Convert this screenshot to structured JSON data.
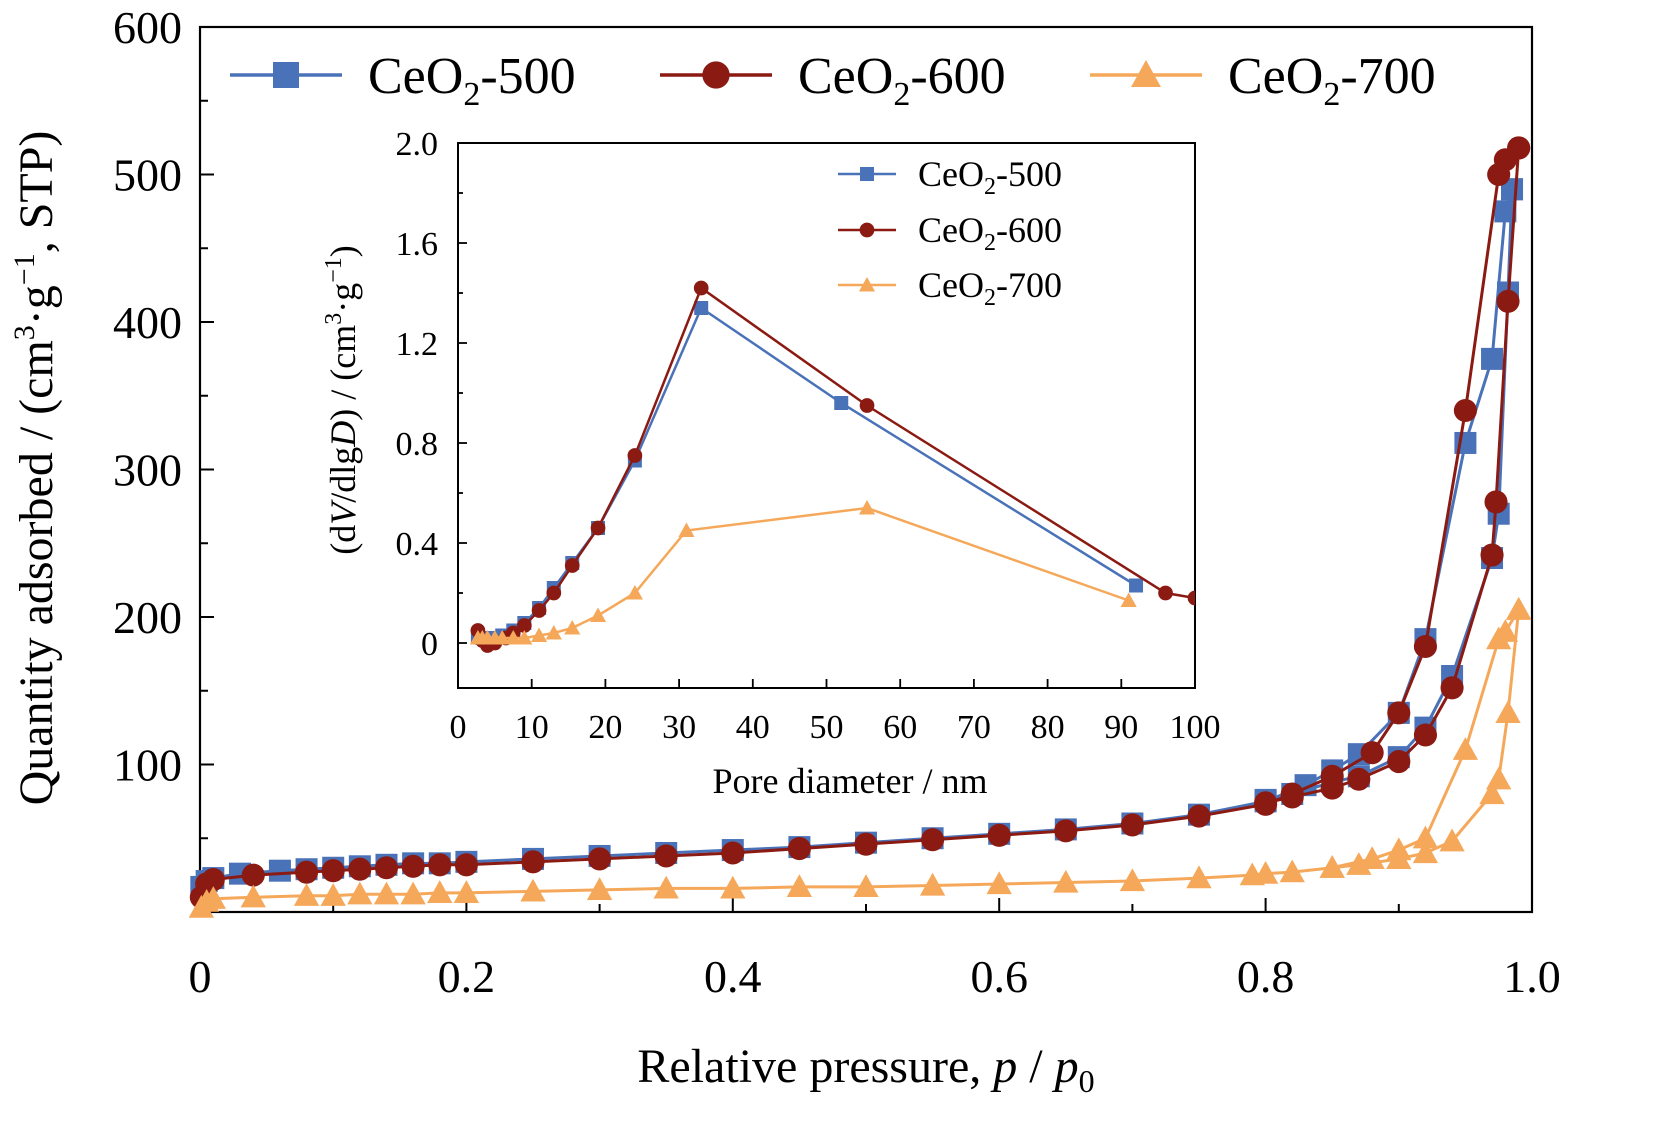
{
  "chart_data": [
    {
      "type": "line",
      "role": "main",
      "xlabel": "Relative pressure, p / p0",
      "xlabel_parts": {
        "main": "Relative pressure, ",
        "p": "p",
        "sep": " / ",
        "p0": "p",
        "sub": "0"
      },
      "ylabel": "Quantity adsorbed / (cm3·g−1, STP)",
      "ylabel_parts": {
        "main": "Quantity adsorbed / (cm",
        "sup1": "3",
        "mid": "·g",
        "sup2": "−1",
        "end": ", STP)"
      },
      "xlim": [
        0,
        1.0
      ],
      "ylim": [
        0,
        600
      ],
      "xticks": [
        "0",
        "0.2",
        "0.4",
        "0.6",
        "0.8",
        "1.0"
      ],
      "xtick_values": [
        0,
        0.2,
        0.4,
        0.6,
        0.8,
        1.0
      ],
      "yticks": [
        "100",
        "200",
        "300",
        "400",
        "500",
        "600"
      ],
      "ytick_values": [
        100,
        200,
        300,
        400,
        500,
        600
      ],
      "legend_position": "top",
      "series": [
        {
          "name": "CeO2-500",
          "name_parts": {
            "base": "CeO",
            "sub": "2",
            "rest": "-500"
          },
          "color": "#4a72b8",
          "marker": "square",
          "adsorption": [
            [
              0.001,
              17
            ],
            [
              0.005,
              21
            ],
            [
              0.01,
              23
            ],
            [
              0.03,
              26
            ],
            [
              0.06,
              28
            ],
            [
              0.08,
              29
            ],
            [
              0.1,
              30
            ],
            [
              0.12,
              31
            ],
            [
              0.14,
              32
            ],
            [
              0.16,
              33
            ],
            [
              0.18,
              33
            ],
            [
              0.2,
              34
            ],
            [
              0.25,
              36
            ],
            [
              0.3,
              38
            ],
            [
              0.35,
              40
            ],
            [
              0.4,
              42
            ],
            [
              0.45,
              44
            ],
            [
              0.5,
              47
            ],
            [
              0.55,
              50
            ],
            [
              0.6,
              53
            ],
            [
              0.65,
              56
            ],
            [
              0.7,
              60
            ],
            [
              0.75,
              66
            ],
            [
              0.8,
              75
            ],
            [
              0.83,
              86
            ],
            [
              0.85,
              96
            ],
            [
              0.87,
              107
            ],
            [
              0.9,
              135
            ],
            [
              0.92,
              185
            ],
            [
              0.95,
              318
            ],
            [
              0.97,
              375
            ],
            [
              0.98,
              475
            ],
            [
              0.985,
              490
            ]
          ],
          "desorption": [
            [
              0.985,
              490
            ],
            [
              0.982,
              420
            ],
            [
              0.975,
              270
            ],
            [
              0.97,
              240
            ],
            [
              0.94,
              160
            ],
            [
              0.92,
              125
            ],
            [
              0.9,
              105
            ],
            [
              0.87,
              92
            ],
            [
              0.85,
              88
            ],
            [
              0.82,
              80
            ],
            [
              0.8,
              76
            ]
          ]
        },
        {
          "name": "CeO2-600",
          "name_parts": {
            "base": "CeO",
            "sub": "2",
            "rest": "-600"
          },
          "color": "#8b1a12",
          "marker": "circle",
          "adsorption": [
            [
              0.001,
              10
            ],
            [
              0.005,
              19
            ],
            [
              0.01,
              22
            ],
            [
              0.04,
              25
            ],
            [
              0.08,
              27
            ],
            [
              0.1,
              28
            ],
            [
              0.12,
              29
            ],
            [
              0.14,
              30
            ],
            [
              0.16,
              31
            ],
            [
              0.18,
              32
            ],
            [
              0.2,
              32
            ],
            [
              0.25,
              34
            ],
            [
              0.3,
              36
            ],
            [
              0.35,
              38
            ],
            [
              0.4,
              40
            ],
            [
              0.45,
              43
            ],
            [
              0.5,
              46
            ],
            [
              0.55,
              49
            ],
            [
              0.6,
              52
            ],
            [
              0.65,
              55
            ],
            [
              0.7,
              59
            ],
            [
              0.75,
              65
            ],
            [
              0.8,
              73
            ],
            [
              0.82,
              80
            ],
            [
              0.85,
              92
            ],
            [
              0.88,
              108
            ],
            [
              0.9,
              135
            ],
            [
              0.92,
              180
            ],
            [
              0.95,
              340
            ],
            [
              0.975,
              500
            ],
            [
              0.98,
              510
            ],
            [
              0.99,
              518
            ]
          ],
          "desorption": [
            [
              0.99,
              518
            ],
            [
              0.982,
              414
            ],
            [
              0.973,
              278
            ],
            [
              0.97,
              242
            ],
            [
              0.94,
              152
            ],
            [
              0.92,
              120
            ],
            [
              0.9,
              102
            ],
            [
              0.87,
              90
            ],
            [
              0.85,
              84
            ],
            [
              0.82,
              78
            ],
            [
              0.8,
              74
            ]
          ]
        },
        {
          "name": "CeO2-700",
          "name_parts": {
            "base": "CeO",
            "sub": "2",
            "rest": "-700"
          },
          "color": "#f5a85a",
          "marker": "triangle",
          "adsorption": [
            [
              0.001,
              3
            ],
            [
              0.005,
              7
            ],
            [
              0.01,
              9
            ],
            [
              0.04,
              10
            ],
            [
              0.08,
              11
            ],
            [
              0.1,
              11
            ],
            [
              0.12,
              12
            ],
            [
              0.14,
              12
            ],
            [
              0.16,
              12
            ],
            [
              0.18,
              13
            ],
            [
              0.2,
              13
            ],
            [
              0.25,
              14
            ],
            [
              0.3,
              15
            ],
            [
              0.35,
              16
            ],
            [
              0.4,
              16
            ],
            [
              0.45,
              17
            ],
            [
              0.5,
              17
            ],
            [
              0.55,
              18
            ],
            [
              0.6,
              19
            ],
            [
              0.65,
              20
            ],
            [
              0.7,
              21
            ],
            [
              0.75,
              23
            ],
            [
              0.79,
              25
            ],
            [
              0.8,
              26
            ],
            [
              0.82,
              27
            ],
            [
              0.85,
              30
            ],
            [
              0.88,
              36
            ],
            [
              0.9,
              42
            ],
            [
              0.92,
              50
            ],
            [
              0.95,
              110
            ],
            [
              0.975,
              185
            ],
            [
              0.98,
              190
            ],
            [
              0.99,
              205
            ]
          ],
          "desorption": [
            [
              0.99,
              205
            ],
            [
              0.982,
              135
            ],
            [
              0.975,
              90
            ],
            [
              0.97,
              80
            ],
            [
              0.94,
              48
            ],
            [
              0.92,
              40
            ],
            [
              0.9,
              36
            ],
            [
              0.87,
              32
            ],
            [
              0.85,
              30
            ]
          ]
        }
      ]
    },
    {
      "type": "line",
      "role": "inset",
      "xlabel": "Pore diameter / nm",
      "ylabel": "(dV/dlgD) / (cm3·g−1)",
      "ylabel_parts": {
        "open": "(d",
        "V": "V",
        "mid1": "/dlg",
        "D": "D",
        "mid2": ") / (cm",
        "sup1": "3",
        "mid3": "·g",
        "sup2": "−1",
        "end": ")"
      },
      "xlim": [
        0,
        100
      ],
      "ylim": [
        -0.18,
        2.0
      ],
      "xticks": [
        "0",
        "10",
        "20",
        "30",
        "40",
        "50",
        "60",
        "70",
        "80",
        "90",
        "100"
      ],
      "xtick_values": [
        0,
        10,
        20,
        30,
        40,
        50,
        60,
        70,
        80,
        90,
        100
      ],
      "yticks": [
        "0",
        "0.4",
        "0.8",
        "1.2",
        "1.6",
        "2.0"
      ],
      "ytick_values": [
        0,
        0.4,
        0.8,
        1.2,
        1.6,
        2.0
      ],
      "legend_position": "top-right",
      "series": [
        {
          "name": "CeO2-500",
          "name_parts": {
            "base": "CeO",
            "sub": "2",
            "rest": "-500"
          },
          "color": "#4a72b8",
          "marker": "square",
          "points": [
            [
              2.7,
              0.03
            ],
            [
              3.3,
              0.02
            ],
            [
              4.0,
              0.01
            ],
            [
              5.0,
              0.02
            ],
            [
              6.0,
              0.03
            ],
            [
              7.5,
              0.05
            ],
            [
              9.0,
              0.08
            ],
            [
              11,
              0.14
            ],
            [
              13,
              0.22
            ],
            [
              15.5,
              0.32
            ],
            [
              19,
              0.46
            ],
            [
              24,
              0.73
            ],
            [
              33,
              1.34
            ],
            [
              52,
              0.96
            ],
            [
              92,
              0.23
            ]
          ]
        },
        {
          "name": "CeO2-600",
          "name_parts": {
            "base": "CeO",
            "sub": "2",
            "rest": "-600"
          },
          "color": "#8b1a12",
          "marker": "circle",
          "points": [
            [
              2.7,
              0.05
            ],
            [
              3.3,
              0.01
            ],
            [
              4.0,
              -0.01
            ],
            [
              5.0,
              0.0
            ],
            [
              6.5,
              0.02
            ],
            [
              7.5,
              0.04
            ],
            [
              9.0,
              0.07
            ],
            [
              11,
              0.13
            ],
            [
              13,
              0.2
            ],
            [
              15.5,
              0.31
            ],
            [
              19,
              0.46
            ],
            [
              24,
              0.75
            ],
            [
              33,
              1.42
            ],
            [
              55.5,
              0.95
            ],
            [
              96,
              0.2
            ],
            [
              100,
              0.18
            ]
          ]
        },
        {
          "name": "CeO2-700",
          "name_parts": {
            "base": "CeO",
            "sub": "2",
            "rest": "-700"
          },
          "color": "#f5a85a",
          "marker": "triangle",
          "points": [
            [
              2.7,
              0.02
            ],
            [
              3.3,
              0.02
            ],
            [
              4.0,
              0.02
            ],
            [
              5.0,
              0.02
            ],
            [
              6.0,
              0.02
            ],
            [
              7.5,
              0.02
            ],
            [
              9.0,
              0.02
            ],
            [
              11,
              0.03
            ],
            [
              13,
              0.04
            ],
            [
              15.5,
              0.06
            ],
            [
              19,
              0.11
            ],
            [
              24,
              0.2
            ],
            [
              31,
              0.45
            ],
            [
              55.5,
              0.54
            ],
            [
              91,
              0.17
            ]
          ]
        }
      ]
    }
  ]
}
